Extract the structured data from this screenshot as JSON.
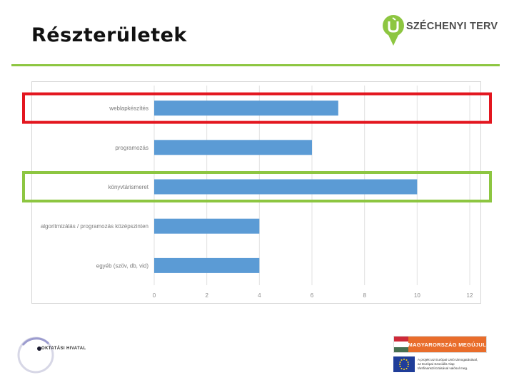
{
  "slide": {
    "title": "Részterületek"
  },
  "brand": {
    "text": "SZÉCHENYI TERV",
    "icon_text": "ÚJ",
    "color": "#8dc641"
  },
  "footer": {
    "left_logo_text": "OKTATÁSI HIVATAL",
    "banner_text": "MAGYARORSZÁG MEGÚJUL",
    "eu_lines": [
      "A projekt az Európai Unió támogatásával,",
      "az Európai Szociális Alap",
      "társfinanszírozásával valósul meg."
    ]
  },
  "chart_data": {
    "type": "bar",
    "orientation": "horizontal",
    "categories": [
      "weblapkészítés",
      "programozás",
      "könyvtárismeret",
      "algoritmizálás / programozás középszinten",
      "egyéb (szöv, db, vid)"
    ],
    "values": [
      7,
      6,
      10,
      4,
      4
    ],
    "xlim": [
      0,
      12
    ],
    "xticks": [
      0,
      2,
      4,
      6,
      8,
      10,
      12
    ],
    "grid": true,
    "bar_color": "#5b9bd5",
    "highlights": [
      {
        "category_index": 0,
        "color": "#e3161f"
      },
      {
        "category_index": 2,
        "color": "#8dc641"
      }
    ]
  }
}
